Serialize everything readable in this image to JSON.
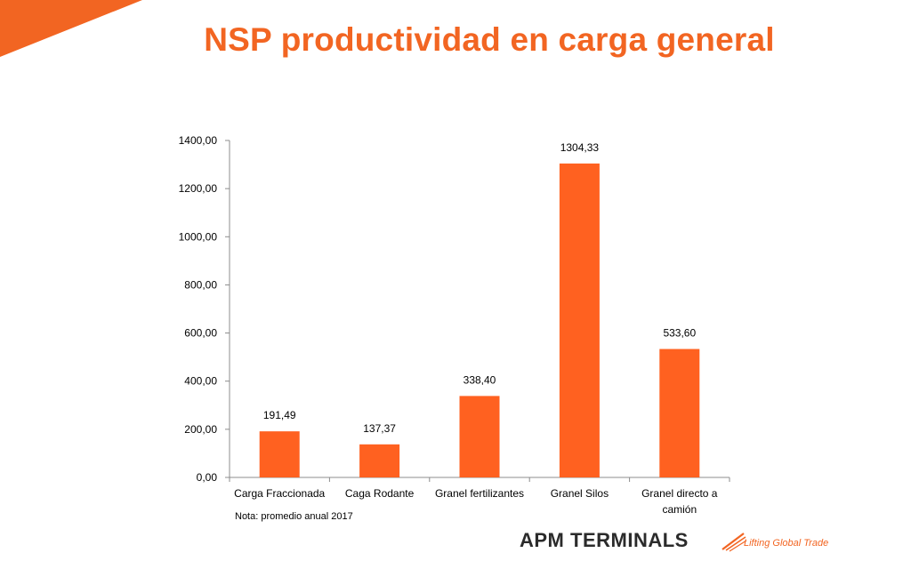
{
  "slide": {
    "title": "NSP productividad en carga general",
    "note": "Nota: promedio anual 2017",
    "accent_color": "#f26522"
  },
  "logo": {
    "name": "APM TERMINALS",
    "tagline": "Lifting Global Trade"
  },
  "chart_data": {
    "type": "bar",
    "categories": [
      "Carga Fraccionada",
      "Caga Rodante",
      "Granel fertilizantes",
      "Granel Silos",
      "Granel directo a camión"
    ],
    "values": [
      191.49,
      137.37,
      338.4,
      1304.33,
      533.6
    ],
    "value_labels": [
      "191,49",
      "137,37",
      "338,40",
      "1304,33",
      "533,60"
    ],
    "ylim": [
      0,
      1400
    ],
    "yticks": [
      "0,00",
      "200,00",
      "400,00",
      "600,00",
      "800,00",
      "1000,00",
      "1200,00",
      "1400,00"
    ],
    "title": "",
    "xlabel": "",
    "ylabel": "",
    "grid": false,
    "legend": "none",
    "bar_color": "#ff6120"
  }
}
